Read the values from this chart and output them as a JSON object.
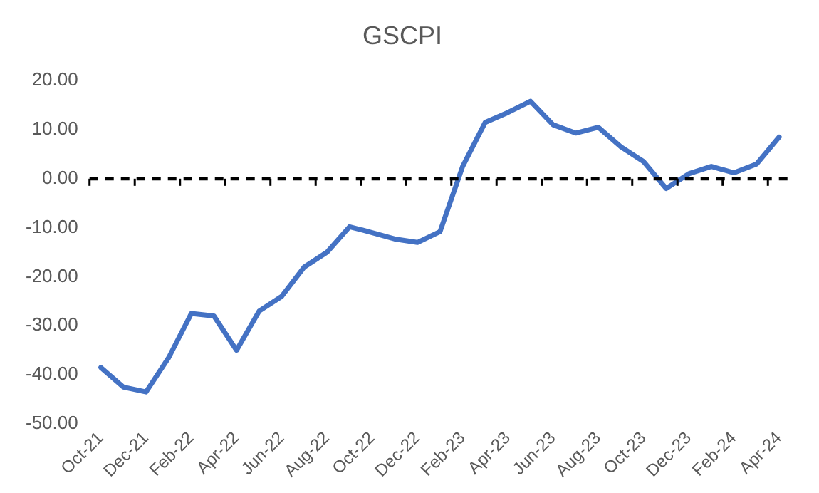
{
  "chart_data": {
    "type": "line",
    "title": "GSCPI",
    "categories": [
      "Oct-21",
      null,
      "Dec-21",
      null,
      "Feb-22",
      null,
      "Apr-22",
      null,
      "Jun-22",
      null,
      "Aug-22",
      null,
      "Oct-22",
      null,
      "Dec-22",
      null,
      "Feb-23",
      null,
      "Apr-23",
      null,
      "Jun-23",
      null,
      "Aug-23",
      null,
      "Oct-23",
      null,
      "Dec-23",
      null,
      "Feb-24",
      null,
      "Apr-24"
    ],
    "series": [
      {
        "color": "#4472c4",
        "values": [
          -38.5,
          -42.5,
          -43.5,
          -36.5,
          -27.5,
          -28,
          -35,
          -27,
          -24,
          -18,
          -15,
          -9.8,
          -11,
          -12.3,
          -13,
          -10.8,
          2.5,
          11.5,
          13.5,
          15.8,
          11,
          9.3,
          10.5,
          6.5,
          3.5,
          -2,
          1,
          2.5,
          1.2,
          3,
          8.5
        ]
      }
    ],
    "ylim": [
      -50,
      20
    ],
    "yticks": [
      {
        "value": -50,
        "label": "-50.00"
      },
      {
        "value": -40,
        "label": "-40.00"
      },
      {
        "value": -30,
        "label": "-30.00"
      },
      {
        "value": -20,
        "label": "-20.00"
      },
      {
        "value": -10,
        "label": "-10.00"
      },
      {
        "value": 0,
        "label": "0.00"
      },
      {
        "value": 10,
        "label": "10.00"
      },
      {
        "value": 20,
        "label": "20.00"
      }
    ],
    "ref_lines": [
      {
        "axis": "y",
        "value": 0,
        "color": "#000000",
        "line_style": "dashed"
      }
    ],
    "grid": false,
    "legend": false,
    "marker": "none",
    "line_style": "solid"
  }
}
